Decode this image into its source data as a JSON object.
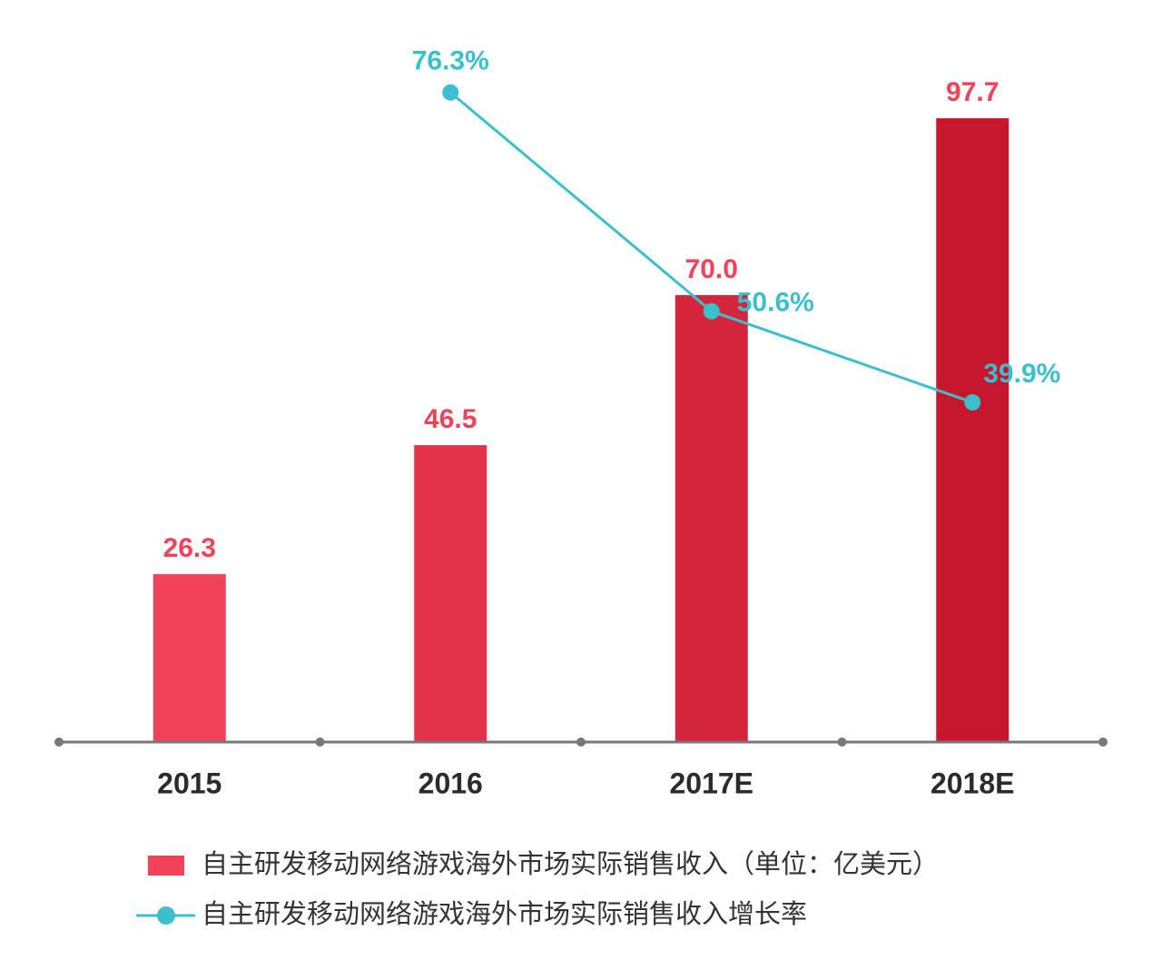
{
  "chart_data": {
    "type": "bar_line",
    "categories": [
      "2015",
      "2016",
      "2017E",
      "2018E"
    ],
    "series": [
      {
        "name": "自主研发移动网络游戏海外市场实际销售收入（单位：亿美元）",
        "type": "bar",
        "colors": [
          "#f0435a",
          "#e3334a",
          "#d5253c",
          "#c7172f"
        ],
        "color": "#f0435a",
        "values": [
          26.3,
          46.5,
          70.0,
          97.7
        ],
        "value_labels": [
          "26.3",
          "46.5",
          "70.0",
          "97.7"
        ]
      },
      {
        "name": "自主研发移动网络游戏海外市场实际销售收入增长率",
        "type": "line",
        "axis": "y2",
        "color": "#3bbfcc",
        "values": [
          null,
          76.3,
          50.6,
          39.9
        ],
        "value_labels": [
          null,
          "76.3%",
          "50.6%",
          "39.9%"
        ]
      }
    ],
    "ylim": [
      0,
      100
    ],
    "y2lim": [
      0,
      75
    ],
    "legend": "bottom"
  }
}
